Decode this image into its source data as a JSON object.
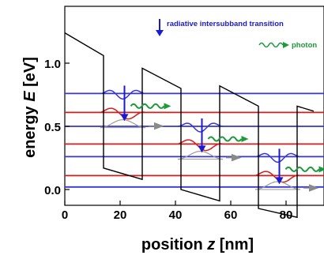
{
  "axes": {
    "ylabel_prefix": "energy ",
    "ylabel_var": "E",
    "ylabel_unit": " [eV]",
    "xlabel_prefix": "position ",
    "xlabel_var": "z",
    "xlabel_unit": " [nm]",
    "yticks": [
      "0.0",
      "0.5",
      "1.0"
    ],
    "xticks": [
      "0",
      "20",
      "40",
      "60",
      "80"
    ]
  },
  "legend": {
    "transition_label": "radiative intersubband transition",
    "photon_label": "photon"
  },
  "colors": {
    "upper_level": "#3535d8",
    "lower_level": "#d61c1c",
    "transition_arrow": "#1a1ad0",
    "photon": "#1d9a3a",
    "tunnel_arrow": "#8a8a8a",
    "band": "#000000"
  },
  "chart_data": {
    "type": "band-diagram",
    "xlabel": "position z [nm]",
    "ylabel": "energy E [eV]",
    "xlim": [
      0,
      90
    ],
    "ylim": [
      -0.1,
      1.25
    ],
    "potential_profile": {
      "x": [
        0,
        14,
        14,
        28,
        28,
        42,
        42,
        56,
        56,
        70,
        70,
        84,
        84,
        90
      ],
      "y": [
        1.24,
        1.06,
        0.17,
        0.08,
        0.96,
        0.8,
        0.0,
        -0.09,
        0.82,
        0.66,
        -0.15,
        -0.22,
        0.66,
        0.62
      ]
    },
    "subband_levels": [
      {
        "state": "upper",
        "energy": 0.76
      },
      {
        "state": "lower",
        "energy": 0.61
      },
      {
        "state": "upper",
        "energy": 0.5
      },
      {
        "state": "lower",
        "energy": 0.36
      },
      {
        "state": "upper",
        "energy": 0.26
      },
      {
        "state": "lower",
        "energy": 0.11
      },
      {
        "state": "upper",
        "energy": 0.02
      }
    ],
    "wells": [
      {
        "x_range": [
          14,
          28
        ],
        "upper_state": 0.76,
        "lower_state": 0.61,
        "ground_state": 0.49
      },
      {
        "x_range": [
          42,
          56
        ],
        "upper_state": 0.5,
        "lower_state": 0.36,
        "ground_state": 0.24
      },
      {
        "x_range": [
          70,
          84
        ],
        "upper_state": 0.26,
        "lower_state": 0.11,
        "ground_state": 0.0
      }
    ]
  }
}
